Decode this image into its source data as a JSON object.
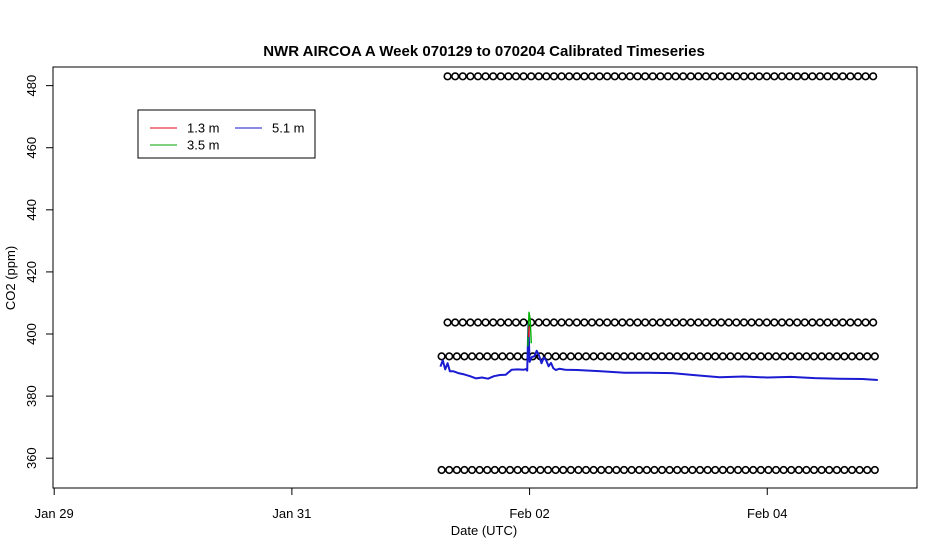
{
  "chart_data": {
    "type": "line",
    "title": "NWR AIRCOA A  Week 070129 to 070204  Calibrated Timeseries",
    "xlabel": "Date (UTC)",
    "ylabel": "CO2 (ppm)",
    "x_ticks": [
      {
        "label": "Jan 29",
        "day": 29
      },
      {
        "label": "Jan 31",
        "day": 31
      },
      {
        "label": "Feb 02",
        "day": 33
      },
      {
        "label": "Feb 04",
        "day": 35
      }
    ],
    "y_ticks": [
      360,
      380,
      400,
      420,
      440,
      460,
      480
    ],
    "xlim": [
      28.99,
      36.26
    ],
    "ylim": [
      350.4,
      486.0
    ],
    "grid": false,
    "legend": {
      "placement": "top-left",
      "entries": [
        {
          "name": "1.3 m",
          "color": "#e8001c"
        },
        {
          "name": "5.1 m",
          "color": "#1515c8"
        },
        {
          "name": "3.5 m",
          "color": "#00a000"
        }
      ]
    },
    "series": [
      {
        "name": "5.1 m",
        "color": "#1b1bd2",
        "x": [
          32.25,
          32.27,
          32.29,
          32.31,
          32.33,
          32.36,
          32.4,
          32.45,
          32.5,
          32.55,
          32.6,
          32.65,
          32.7,
          32.75,
          32.8,
          32.85,
          32.9,
          32.95,
          32.97,
          32.98,
          32.99,
          33.0,
          33.02,
          33.04,
          33.06,
          33.08,
          33.1,
          33.12,
          33.14,
          33.16,
          33.18,
          33.2,
          33.22,
          33.25,
          33.3,
          33.4,
          33.6,
          33.8,
          34.0,
          34.2,
          34.4,
          34.6,
          34.8,
          35.0,
          35.2,
          35.4,
          35.6,
          35.8,
          35.93
        ],
        "values": [
          389.5,
          391.5,
          388.6,
          390.6,
          388.0,
          388.0,
          387.4,
          387.0,
          386.4,
          385.7,
          386.0,
          385.6,
          386.4,
          386.8,
          386.9,
          388.5,
          388.6,
          388.5,
          388.7,
          388.2,
          403.2,
          391.0,
          392.6,
          392.8,
          394.6,
          393.0,
          390.6,
          392.4,
          391.5,
          389.6,
          390.7,
          389.0,
          388.4,
          388.8,
          388.5,
          388.4,
          388.0,
          387.5,
          387.5,
          387.4,
          386.7,
          386.1,
          386.3,
          386.0,
          386.2,
          385.8,
          385.6,
          385.5,
          385.2
        ]
      },
      {
        "name": "3.5 m",
        "color": "#00b000",
        "x": [
          32.985,
          32.995,
          33.005,
          33.015
        ],
        "values": [
          396.0,
          407.0,
          404.8,
          397.0
        ]
      },
      {
        "name": "1.3 m",
        "color": "#e8001c",
        "x": [
          32.992,
          32.998
        ],
        "values": [
          399.0,
          402.5
        ]
      }
    ],
    "marker_rows": [
      {
        "y": 483.0,
        "x_start": 32.31,
        "x_end": 35.93
      },
      {
        "y": 403.7,
        "x_start": 32.31,
        "x_end": 35.93
      },
      {
        "y": 392.8,
        "x_start": 32.26,
        "x_end": 35.93
      },
      {
        "y": 356.2,
        "x_start": 32.26,
        "x_end": 35.93
      }
    ]
  }
}
